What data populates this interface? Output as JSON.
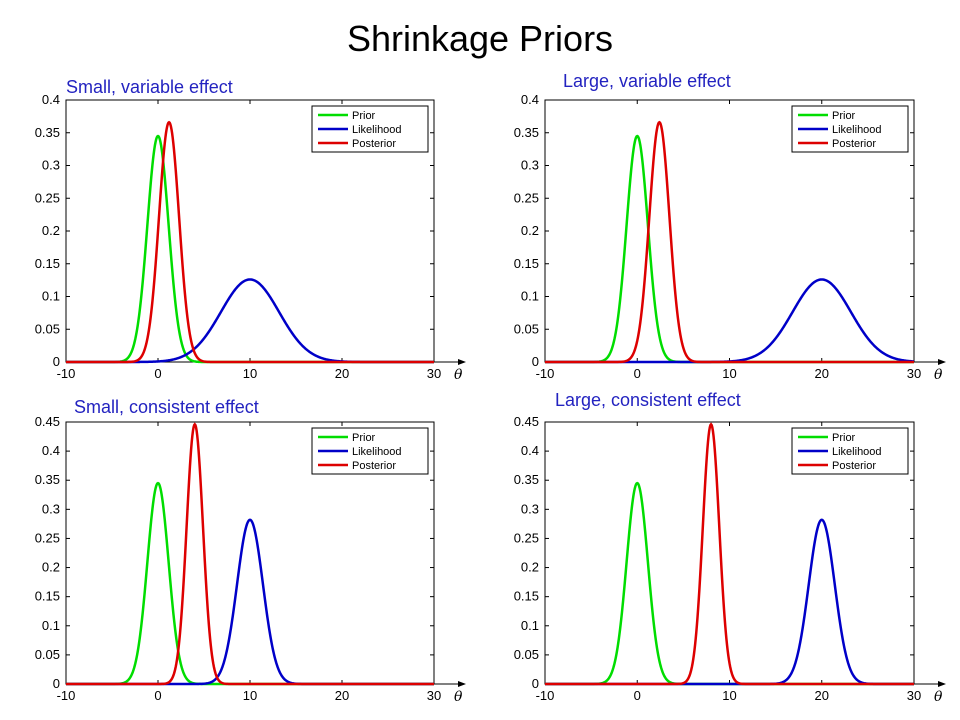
{
  "title": "Shrinkage Priors",
  "axis_symbol": "θ",
  "chart_data": [
    {
      "type": "line",
      "title": "Small, variable effect",
      "xlim": [
        -10,
        30
      ],
      "ylim": [
        0,
        0.4
      ],
      "xticks": [
        -10,
        0,
        10,
        20,
        30
      ],
      "yticks": [
        0,
        0.05,
        0.1,
        0.15,
        0.2,
        0.25,
        0.3,
        0.35,
        0.4
      ],
      "xlabel": "θ",
      "legend_position": "top-right",
      "grid": false,
      "series": [
        {
          "name": "Prior",
          "color": "#00dd00",
          "mean": 0,
          "sd": 1.155,
          "peak": 0.345
        },
        {
          "name": "Likelihood",
          "color": "#0000c8",
          "mean": 10,
          "sd": 3.16,
          "peak": 0.126
        },
        {
          "name": "Posterior",
          "color": "#dd0000",
          "mean": 1.2,
          "sd": 1.09,
          "peak": 0.366
        }
      ]
    },
    {
      "type": "line",
      "title": "Large, variable effect",
      "xlim": [
        -10,
        30
      ],
      "ylim": [
        0,
        0.4
      ],
      "xticks": [
        -10,
        0,
        10,
        20,
        30
      ],
      "yticks": [
        0,
        0.05,
        0.1,
        0.15,
        0.2,
        0.25,
        0.3,
        0.35,
        0.4
      ],
      "xlabel": "θ",
      "legend_position": "top-right",
      "grid": false,
      "series": [
        {
          "name": "Prior",
          "color": "#00dd00",
          "mean": 0,
          "sd": 1.155,
          "peak": 0.345
        },
        {
          "name": "Likelihood",
          "color": "#0000c8",
          "mean": 20,
          "sd": 3.16,
          "peak": 0.126
        },
        {
          "name": "Posterior",
          "color": "#dd0000",
          "mean": 2.4,
          "sd": 1.09,
          "peak": 0.366
        }
      ]
    },
    {
      "type": "line",
      "title": "Small, consistent effect",
      "xlim": [
        -10,
        30
      ],
      "ylim": [
        0,
        0.45
      ],
      "xticks": [
        -10,
        0,
        10,
        20,
        30
      ],
      "yticks": [
        0,
        0.05,
        0.1,
        0.15,
        0.2,
        0.25,
        0.3,
        0.35,
        0.4,
        0.45
      ],
      "xlabel": "θ",
      "legend_position": "top-right",
      "grid": false,
      "series": [
        {
          "name": "Prior",
          "color": "#00dd00",
          "mean": 0,
          "sd": 1.155,
          "peak": 0.345
        },
        {
          "name": "Likelihood",
          "color": "#0000c8",
          "mean": 10,
          "sd": 1.41,
          "peak": 0.282
        },
        {
          "name": "Posterior",
          "color": "#dd0000",
          "mean": 4,
          "sd": 0.89,
          "peak": 0.446
        }
      ]
    },
    {
      "type": "line",
      "title": "Large, consistent effect",
      "xlim": [
        -10,
        30
      ],
      "ylim": [
        0,
        0.45
      ],
      "xticks": [
        -10,
        0,
        10,
        20,
        30
      ],
      "yticks": [
        0,
        0.05,
        0.1,
        0.15,
        0.2,
        0.25,
        0.3,
        0.35,
        0.4,
        0.45
      ],
      "xlabel": "θ",
      "legend_position": "top-right",
      "grid": false,
      "series": [
        {
          "name": "Prior",
          "color": "#00dd00",
          "mean": 0,
          "sd": 1.155,
          "peak": 0.345
        },
        {
          "name": "Likelihood",
          "color": "#0000c8",
          "mean": 20,
          "sd": 1.41,
          "peak": 0.282
        },
        {
          "name": "Posterior",
          "color": "#dd0000",
          "mean": 8,
          "sd": 0.89,
          "peak": 0.446
        }
      ]
    }
  ]
}
